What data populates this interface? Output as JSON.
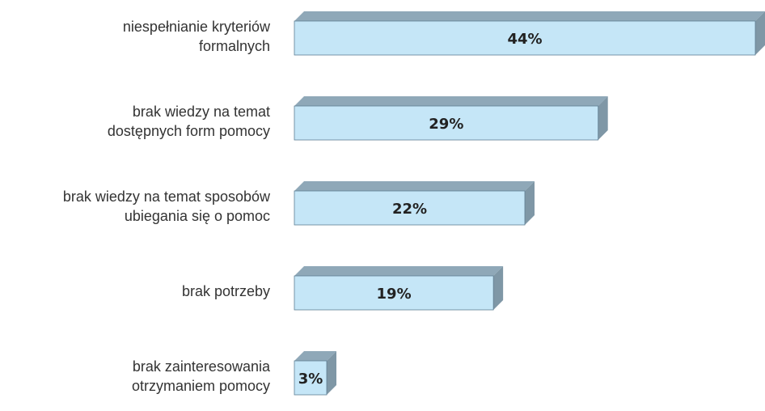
{
  "chart_data": {
    "type": "bar",
    "orientation": "horizontal",
    "categories": [
      "niespełnianie kryteriów formalnych",
      "brak wiedzy na temat dostępnych form pomocy",
      "brak wiedzy na temat sposobów ubiegania się o pomoc",
      "brak potrzeby",
      "brak zainteresowania otrzymaniem pomocy"
    ],
    "values": [
      44,
      29,
      22,
      19,
      3
    ],
    "value_labels": [
      "44%",
      "29%",
      "22%",
      "19%",
      "3%"
    ],
    "unit": "%",
    "xlim": [
      0,
      44
    ],
    "grid": false,
    "legend": "none",
    "style": "3d",
    "colors": {
      "bar_front": "#c5e6f7",
      "bar_top": "#8fa8b8",
      "bar_side": "#7f97a6",
      "bar_edge": "#5f7f93",
      "label_text": "#333333"
    }
  }
}
